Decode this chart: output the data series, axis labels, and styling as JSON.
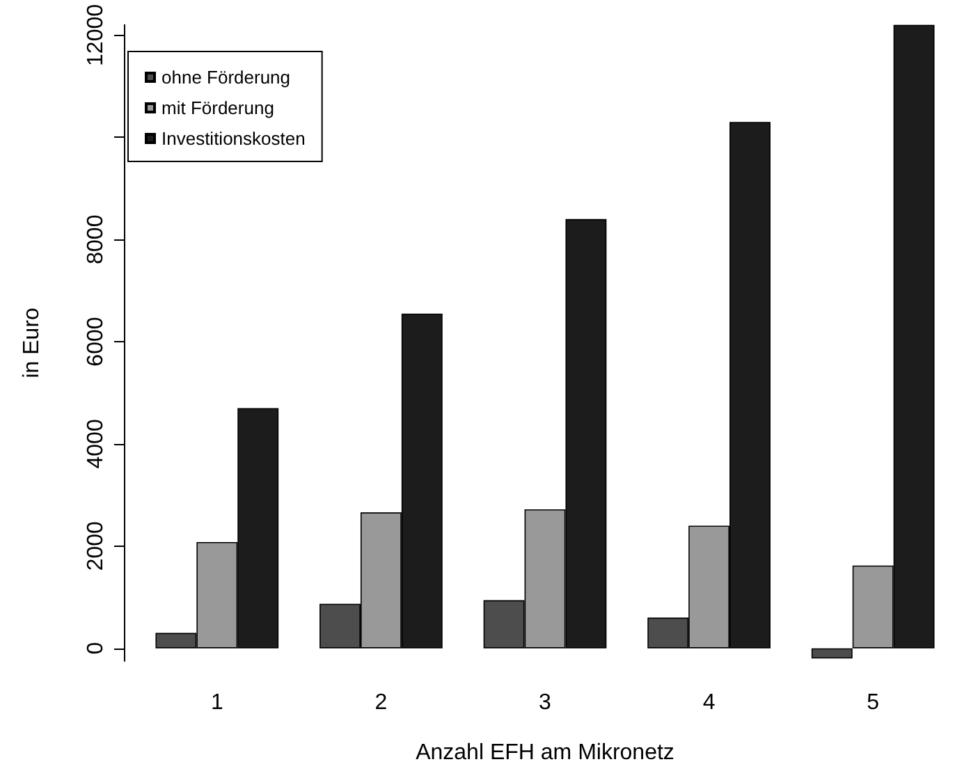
{
  "chart_data": {
    "type": "bar",
    "xlabel": "Anzahl EFH am Mikronetz",
    "ylabel": "in Euro",
    "categories": [
      "1",
      "2",
      "3",
      "4",
      "5"
    ],
    "series": [
      {
        "name": "ohne Förderung",
        "color": "#4d4d4d",
        "values": [
          300,
          870,
          940,
          600,
          -200
        ]
      },
      {
        "name": "mit Förderung",
        "color": "#999999",
        "values": [
          2080,
          2660,
          2720,
          2400,
          1620
        ]
      },
      {
        "name": "Investitionskosten",
        "color": "#1c1c1c",
        "values": [
          4700,
          6550,
          8400,
          10300,
          12200
        ]
      }
    ],
    "ylim": [
      -250,
      12200
    ],
    "yticks": [
      0,
      2000,
      4000,
      6000,
      8000,
      {
        "value": 10000,
        "label": null
      },
      12000
    ],
    "grid": false,
    "legend": "top left"
  }
}
